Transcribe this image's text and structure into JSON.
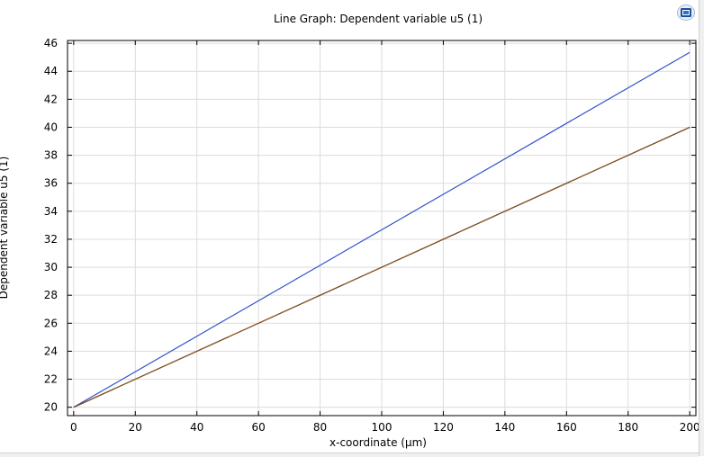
{
  "chart_data": {
    "type": "line",
    "title": "Line Graph: Dependent variable u5 (1)",
    "xlabel": "x-coordinate (µm)",
    "ylabel": "Dependent variable u5 (1)",
    "xlim": [
      -2,
      202
    ],
    "ylim": [
      19.4,
      46.2
    ],
    "xticks": [
      0,
      20,
      40,
      60,
      80,
      100,
      120,
      140,
      160,
      180,
      200
    ],
    "yticks": [
      20,
      22,
      24,
      26,
      28,
      30,
      32,
      34,
      36,
      38,
      40,
      42,
      44,
      46
    ],
    "grid": true,
    "series": [
      {
        "color": "#3355cc",
        "x": [
          0,
          200
        ],
        "y": [
          20,
          45.35
        ]
      },
      {
        "color": "#000000",
        "x": [
          0,
          200
        ],
        "y": [
          20,
          40
        ]
      },
      {
        "color": "#b06010",
        "x": [
          0,
          200
        ],
        "y": [
          20,
          40
        ]
      }
    ]
  },
  "icons": {
    "logo": "comsol-logo-icon"
  }
}
